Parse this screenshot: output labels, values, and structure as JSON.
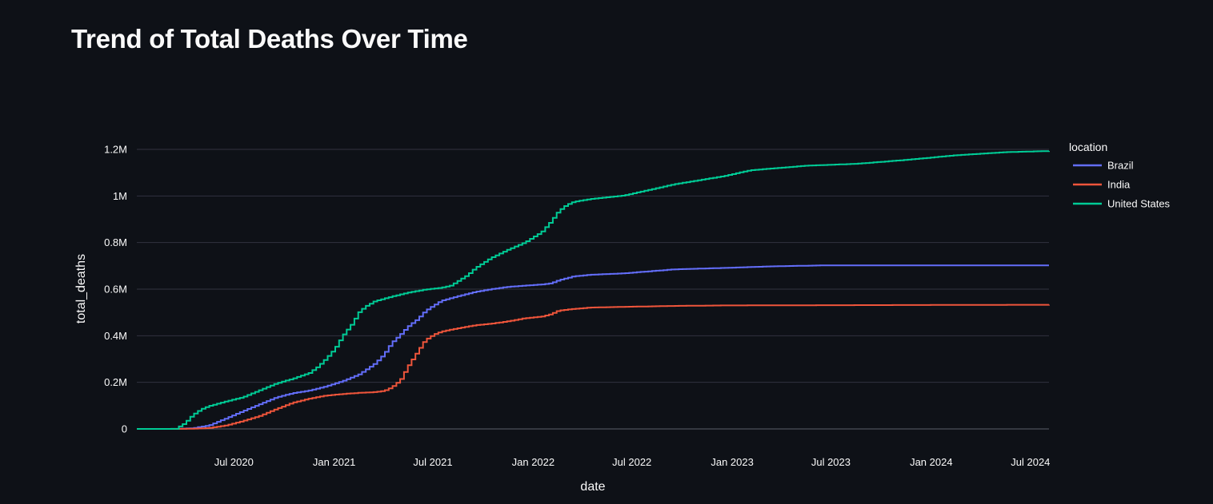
{
  "page": {
    "title": "Trend of Total Deaths Over Time"
  },
  "colors": {
    "background": "#0e1117",
    "grid": "#31333f",
    "text": "#fafafa"
  },
  "chart_data": {
    "type": "line",
    "line_shape": "step",
    "xlabel": "date",
    "ylabel": "total_deaths",
    "x_range": [
      "2020-01-05",
      "2024-08-04"
    ],
    "ylim": [
      0,
      1200000
    ],
    "grid": "horizontal",
    "legend_title": "location",
    "legend_position": "top-right",
    "x_ticks": [
      {
        "date": "2020-07-01",
        "label": "Jul 2020"
      },
      {
        "date": "2021-01-01",
        "label": "Jan 2021"
      },
      {
        "date": "2021-07-01",
        "label": "Jul 2021"
      },
      {
        "date": "2022-01-01",
        "label": "Jan 2022"
      },
      {
        "date": "2022-07-01",
        "label": "Jul 2022"
      },
      {
        "date": "2023-01-01",
        "label": "Jan 2023"
      },
      {
        "date": "2023-07-01",
        "label": "Jul 2023"
      },
      {
        "date": "2024-01-01",
        "label": "Jan 2024"
      },
      {
        "date": "2024-07-01",
        "label": "Jul 2024"
      }
    ],
    "y_ticks": [
      {
        "value": 0,
        "label": "0"
      },
      {
        "value": 200000,
        "label": "0.2M"
      },
      {
        "value": 400000,
        "label": "0.4M"
      },
      {
        "value": 600000,
        "label": "0.6M"
      },
      {
        "value": 800000,
        "label": "0.8M"
      },
      {
        "value": 1000000,
        "label": "1M"
      },
      {
        "value": 1200000,
        "label": "1.2M"
      }
    ],
    "series": [
      {
        "name": "Brazil",
        "color": "#636efa",
        "points": [
          [
            "2020-01-05",
            0
          ],
          [
            "2020-03-15",
            0
          ],
          [
            "2020-04-15",
            3000
          ],
          [
            "2020-05-15",
            15000
          ],
          [
            "2020-06-15",
            45000
          ],
          [
            "2020-07-15",
            75000
          ],
          [
            "2020-08-15",
            105000
          ],
          [
            "2020-09-15",
            135000
          ],
          [
            "2020-10-15",
            153000
          ],
          [
            "2020-11-15",
            165000
          ],
          [
            "2020-12-15",
            182000
          ],
          [
            "2021-01-15",
            205000
          ],
          [
            "2021-02-15",
            235000
          ],
          [
            "2021-03-15",
            280000
          ],
          [
            "2021-04-01",
            320000
          ],
          [
            "2021-04-15",
            370000
          ],
          [
            "2021-05-01",
            405000
          ],
          [
            "2021-05-15",
            440000
          ],
          [
            "2021-06-01",
            470000
          ],
          [
            "2021-06-15",
            505000
          ],
          [
            "2021-07-01",
            530000
          ],
          [
            "2021-07-15",
            550000
          ],
          [
            "2021-08-15",
            570000
          ],
          [
            "2021-09-15",
            588000
          ],
          [
            "2021-10-15",
            600000
          ],
          [
            "2021-11-15",
            610000
          ],
          [
            "2021-12-15",
            615000
          ],
          [
            "2022-01-15",
            620000
          ],
          [
            "2022-02-01",
            625000
          ],
          [
            "2022-02-15",
            638000
          ],
          [
            "2022-03-15",
            655000
          ],
          [
            "2022-04-15",
            662000
          ],
          [
            "2022-06-15",
            668000
          ],
          [
            "2022-09-15",
            685000
          ],
          [
            "2022-12-15",
            691000
          ],
          [
            "2023-03-15",
            698000
          ],
          [
            "2023-06-15",
            702000
          ],
          [
            "2023-12-15",
            702000
          ],
          [
            "2024-08-04",
            702000
          ]
        ]
      },
      {
        "name": "India",
        "color": "#ef553b",
        "points": [
          [
            "2020-01-05",
            0
          ],
          [
            "2020-03-15",
            0
          ],
          [
            "2020-04-15",
            1000
          ],
          [
            "2020-05-15",
            4000
          ],
          [
            "2020-06-15",
            15000
          ],
          [
            "2020-07-15",
            33000
          ],
          [
            "2020-08-15",
            55000
          ],
          [
            "2020-09-15",
            85000
          ],
          [
            "2020-10-15",
            112000
          ],
          [
            "2020-11-15",
            130000
          ],
          [
            "2020-12-15",
            143000
          ],
          [
            "2021-01-15",
            150000
          ],
          [
            "2021-02-15",
            155000
          ],
          [
            "2021-03-15",
            158000
          ],
          [
            "2021-04-01",
            163000
          ],
          [
            "2021-04-15",
            178000
          ],
          [
            "2021-05-01",
            210000
          ],
          [
            "2021-05-15",
            270000
          ],
          [
            "2021-06-01",
            330000
          ],
          [
            "2021-06-15",
            380000
          ],
          [
            "2021-07-01",
            405000
          ],
          [
            "2021-07-15",
            418000
          ],
          [
            "2021-08-15",
            432000
          ],
          [
            "2021-09-15",
            445000
          ],
          [
            "2021-10-15",
            452000
          ],
          [
            "2021-11-15",
            462000
          ],
          [
            "2021-12-15",
            475000
          ],
          [
            "2022-01-15",
            482000
          ],
          [
            "2022-02-01",
            492000
          ],
          [
            "2022-02-15",
            508000
          ],
          [
            "2022-03-15",
            515000
          ],
          [
            "2022-04-15",
            521000
          ],
          [
            "2022-06-15",
            524000
          ],
          [
            "2022-09-15",
            528000
          ],
          [
            "2022-12-15",
            530000
          ],
          [
            "2023-06-15",
            531000
          ],
          [
            "2024-08-04",
            533000
          ]
        ]
      },
      {
        "name": "United States",
        "color": "#00cc96",
        "points": [
          [
            "2020-01-05",
            0
          ],
          [
            "2020-03-01",
            0
          ],
          [
            "2020-03-15",
            500
          ],
          [
            "2020-04-01",
            25000
          ],
          [
            "2020-04-15",
            60000
          ],
          [
            "2020-05-01",
            85000
          ],
          [
            "2020-05-15",
            98000
          ],
          [
            "2020-06-15",
            118000
          ],
          [
            "2020-07-15",
            135000
          ],
          [
            "2020-08-15",
            165000
          ],
          [
            "2020-09-15",
            195000
          ],
          [
            "2020-10-15",
            215000
          ],
          [
            "2020-11-15",
            240000
          ],
          [
            "2020-12-01",
            268000
          ],
          [
            "2020-12-15",
            300000
          ],
          [
            "2021-01-01",
            345000
          ],
          [
            "2021-01-15",
            400000
          ],
          [
            "2021-02-01",
            450000
          ],
          [
            "2021-02-15",
            505000
          ],
          [
            "2021-03-01",
            530000
          ],
          [
            "2021-03-15",
            548000
          ],
          [
            "2021-04-15",
            568000
          ],
          [
            "2021-05-15",
            585000
          ],
          [
            "2021-06-15",
            598000
          ],
          [
            "2021-07-15",
            606000
          ],
          [
            "2021-08-01",
            615000
          ],
          [
            "2021-08-15",
            635000
          ],
          [
            "2021-09-01",
            660000
          ],
          [
            "2021-09-15",
            690000
          ],
          [
            "2021-10-15",
            735000
          ],
          [
            "2021-11-15",
            770000
          ],
          [
            "2021-12-15",
            800000
          ],
          [
            "2022-01-15",
            845000
          ],
          [
            "2022-02-01",
            890000
          ],
          [
            "2022-02-15",
            935000
          ],
          [
            "2022-03-01",
            960000
          ],
          [
            "2022-03-15",
            975000
          ],
          [
            "2022-04-15",
            987000
          ],
          [
            "2022-06-15",
            1002000
          ],
          [
            "2022-09-15",
            1050000
          ],
          [
            "2022-12-15",
            1085000
          ],
          [
            "2023-02-01",
            1110000
          ],
          [
            "2023-05-15",
            1130000
          ],
          [
            "2023-08-15",
            1138000
          ],
          [
            "2023-11-15",
            1155000
          ],
          [
            "2024-02-15",
            1175000
          ],
          [
            "2024-05-15",
            1188000
          ],
          [
            "2024-08-04",
            1193000
          ]
        ]
      }
    ]
  }
}
